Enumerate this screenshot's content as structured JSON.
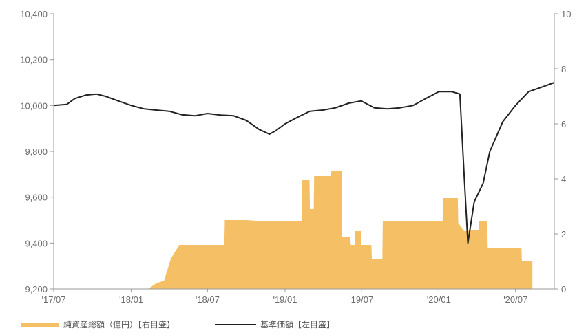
{
  "chart_data": {
    "type": "bar+line",
    "title": "",
    "x_ticks": [
      "'17/07",
      "'18/01",
      "'18/07",
      "'19/01",
      "'19/07",
      "'20/01",
      "'20/07"
    ],
    "y_left": {
      "min": 9200,
      "max": 10400,
      "ticks": [
        "9,200",
        "9,400",
        "9,600",
        "9,800",
        "10,000",
        "10,200",
        "10,400"
      ]
    },
    "y_right": {
      "min": 0,
      "max": 10,
      "ticks": [
        "0",
        "2",
        "4",
        "6",
        "8",
        "10"
      ]
    },
    "series": [
      {
        "name": "純資産総額（億円）【右目盛】",
        "type": "area",
        "axis": "right",
        "color": "#f5bf66",
        "points": [
          [
            "2017-07",
            0
          ],
          [
            "2018-02-10",
            0
          ],
          [
            "2018-03-01",
            0.2
          ],
          [
            "2018-03-20",
            0.3
          ],
          [
            "2018-04-05",
            1.1
          ],
          [
            "2018-04-25",
            1.6
          ],
          [
            "2018-06-01",
            1.6
          ],
          [
            "2018-08-10",
            1.6
          ],
          [
            "2018-08-11",
            2.5
          ],
          [
            "2018-10-01",
            2.5
          ],
          [
            "2018-11-15",
            2.45
          ],
          [
            "2019-01-20",
            2.45
          ],
          [
            "2019-02-10",
            2.45
          ],
          [
            "2019-02-11",
            3.95
          ],
          [
            "2019-02-28",
            3.95
          ],
          [
            "2019-03-01",
            2.9
          ],
          [
            "2019-03-10",
            2.9
          ],
          [
            "2019-03-11",
            4.1
          ],
          [
            "2019-04-20",
            4.1
          ],
          [
            "2019-04-21",
            4.3
          ],
          [
            "2019-05-15",
            4.3
          ],
          [
            "2019-05-16",
            1.9
          ],
          [
            "2019-06-05",
            1.9
          ],
          [
            "2019-06-06",
            1.6
          ],
          [
            "2019-06-15",
            1.6
          ],
          [
            "2019-06-16",
            2.1
          ],
          [
            "2019-06-30",
            2.1
          ],
          [
            "2019-07-01",
            1.6
          ],
          [
            "2019-07-25",
            1.6
          ],
          [
            "2019-07-26",
            1.1
          ],
          [
            "2019-08-20",
            1.1
          ],
          [
            "2019-08-21",
            2.45
          ],
          [
            "2019-12-15",
            2.45
          ],
          [
            "2020-01-10",
            2.45
          ],
          [
            "2020-01-11",
            3.3
          ],
          [
            "2020-02-15",
            3.3
          ],
          [
            "2020-02-16",
            2.4
          ],
          [
            "2020-03-01",
            2.1
          ],
          [
            "2020-04-05",
            2.15
          ],
          [
            "2020-04-06",
            2.45
          ],
          [
            "2020-04-25",
            2.45
          ],
          [
            "2020-04-26",
            1.5
          ],
          [
            "2020-07-15",
            1.5
          ],
          [
            "2020-07-16",
            1.0
          ],
          [
            "2020-08-10",
            1.0
          ]
        ]
      },
      {
        "name": "基準価額【左目盛】",
        "type": "line",
        "axis": "left",
        "color": "#222222",
        "points": [
          [
            "2017-07",
            10000
          ],
          [
            "2017-08-01",
            10005
          ],
          [
            "2017-08-20",
            10030
          ],
          [
            "2017-09-15",
            10045
          ],
          [
            "2017-10-10",
            10050
          ],
          [
            "2017-11-01",
            10040
          ],
          [
            "2017-12-01",
            10020
          ],
          [
            "2018-01-01",
            10000
          ],
          [
            "2018-02-01",
            9985
          ],
          [
            "2018-03-01",
            9980
          ],
          [
            "2018-04-01",
            9975
          ],
          [
            "2018-05-01",
            9960
          ],
          [
            "2018-06-01",
            9955
          ],
          [
            "2018-07-01",
            9965
          ],
          [
            "2018-08-01",
            9958
          ],
          [
            "2018-09-01",
            9955
          ],
          [
            "2018-10-01",
            9935
          ],
          [
            "2018-11-01",
            9895
          ],
          [
            "2018-11-25",
            9875
          ],
          [
            "2018-12-10",
            9890
          ],
          [
            "2019-01-01",
            9920
          ],
          [
            "2019-02-01",
            9950
          ],
          [
            "2019-03-01",
            9975
          ],
          [
            "2019-04-01",
            9980
          ],
          [
            "2019-05-01",
            9990
          ],
          [
            "2019-06-01",
            10010
          ],
          [
            "2019-07-01",
            10020
          ],
          [
            "2019-08-01",
            9990
          ],
          [
            "2019-09-01",
            9985
          ],
          [
            "2019-10-01",
            9990
          ],
          [
            "2019-11-01",
            10000
          ],
          [
            "2019-12-01",
            10030
          ],
          [
            "2020-01-01",
            10060
          ],
          [
            "2020-02-01",
            10060
          ],
          [
            "2020-02-20",
            10050
          ],
          [
            "2020-03-01",
            9700
          ],
          [
            "2020-03-10",
            9400
          ],
          [
            "2020-03-25",
            9580
          ],
          [
            "2020-04-15",
            9660
          ],
          [
            "2020-05-01",
            9800
          ],
          [
            "2020-06-01",
            9930
          ],
          [
            "2020-07-01",
            10000
          ],
          [
            "2020-08-01",
            10060
          ],
          [
            "2020-09-01",
            10080
          ],
          [
            "2020-10-01",
            10100
          ]
        ]
      }
    ],
    "legend_position": "bottom-left",
    "grid": false
  },
  "legend": {
    "area_label": "純資産総額（億円）【右目盛】",
    "line_label": "基準価額【左目盛】"
  }
}
